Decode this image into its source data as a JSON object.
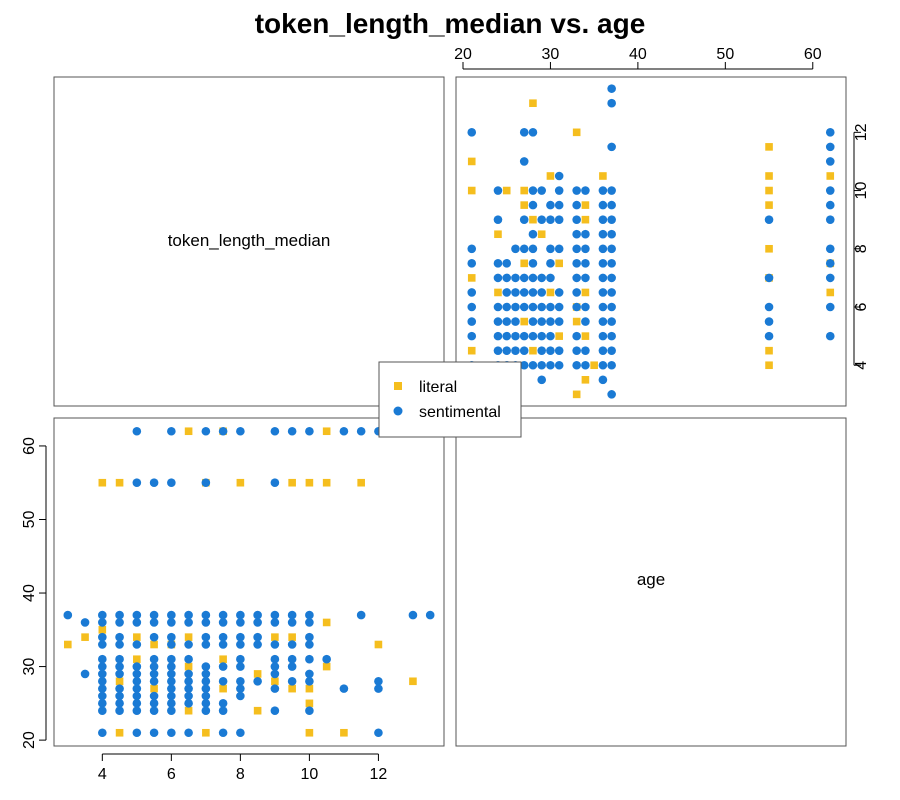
{
  "chart_data": {
    "type": "scatter-matrix",
    "title": "token_length_median vs. age",
    "variables": [
      "token_length_median",
      "age"
    ],
    "diagonal_labels": [
      "token_length_median",
      "age"
    ],
    "axes": {
      "token_length_median": {
        "range": [
          2.6,
          13.9
        ],
        "ticks": [
          4,
          6,
          8,
          10,
          12
        ]
      },
      "age": {
        "range": [
          19.2,
          63.8
        ],
        "ticks": [
          20,
          30,
          40,
          50,
          60
        ]
      }
    },
    "legend": {
      "placement": "center",
      "entries": [
        {
          "label": "literal",
          "marker": "square",
          "color": "#F5BE1E"
        },
        {
          "label": "sentimental",
          "marker": "circle",
          "color": "#1A7AD4"
        }
      ]
    },
    "series": [
      {
        "name": "literal",
        "marker": "square",
        "color": "#F5BE1E",
        "points": [
          [
            3,
            33
          ],
          [
            3.5,
            34
          ],
          [
            4,
            35
          ],
          [
            4.5,
            21
          ],
          [
            4.5,
            28
          ],
          [
            4.5,
            55
          ],
          [
            5,
            34
          ],
          [
            5,
            31
          ],
          [
            5.5,
            27
          ],
          [
            6,
            33
          ],
          [
            6.5,
            62
          ],
          [
            6.5,
            34
          ],
          [
            6.5,
            30
          ],
          [
            6.5,
            24
          ],
          [
            7,
            21
          ],
          [
            7,
            55
          ],
          [
            7.5,
            62
          ],
          [
            7.5,
            31
          ],
          [
            7.5,
            27
          ],
          [
            8,
            55
          ],
          [
            8.5,
            29
          ],
          [
            8.5,
            24
          ],
          [
            9,
            28
          ],
          [
            9,
            34
          ],
          [
            9.5,
            55
          ],
          [
            9.5,
            34
          ],
          [
            9.5,
            27
          ],
          [
            10,
            27
          ],
          [
            10,
            25
          ],
          [
            10,
            55
          ],
          [
            10,
            21
          ],
          [
            10.5,
            62
          ],
          [
            10.5,
            55
          ],
          [
            10.5,
            36
          ],
          [
            10.5,
            30
          ],
          [
            11,
            21
          ],
          [
            11.5,
            55
          ],
          [
            12,
            33
          ],
          [
            13,
            28
          ],
          [
            4,
            55
          ],
          [
            5.5,
            33
          ]
        ]
      },
      {
        "name": "sentimental",
        "marker": "circle",
        "color": "#1A7AD4",
        "points": [
          [
            3,
            37
          ],
          [
            3.5,
            36
          ],
          [
            3.5,
            29
          ],
          [
            13.5,
            37
          ],
          [
            13,
            37
          ],
          [
            11.5,
            37
          ],
          [
            11,
            27
          ],
          [
            12,
            28
          ],
          [
            12,
            27
          ],
          [
            12,
            21
          ],
          [
            12,
            62
          ],
          [
            11.5,
            62
          ],
          [
            11,
            62
          ],
          [
            10,
            62
          ],
          [
            9.5,
            62
          ],
          [
            9,
            62
          ],
          [
            8,
            62
          ],
          [
            7.5,
            62
          ],
          [
            7,
            62
          ],
          [
            6,
            62
          ],
          [
            5,
            62
          ],
          [
            9,
            55
          ],
          [
            7,
            55
          ],
          [
            6,
            55
          ],
          [
            5.5,
            55
          ],
          [
            5,
            55
          ],
          [
            4,
            37
          ],
          [
            4,
            36
          ],
          [
            4,
            34
          ],
          [
            4,
            33
          ],
          [
            4,
            31
          ],
          [
            4,
            30
          ],
          [
            4,
            29
          ],
          [
            4,
            28
          ],
          [
            4,
            27
          ],
          [
            4,
            26
          ],
          [
            4,
            25
          ],
          [
            4,
            24
          ],
          [
            4,
            21
          ],
          [
            4.5,
            37
          ],
          [
            4.5,
            36
          ],
          [
            4.5,
            34
          ],
          [
            4.5,
            33
          ],
          [
            4.5,
            31
          ],
          [
            4.5,
            30
          ],
          [
            4.5,
            29
          ],
          [
            4.5,
            27
          ],
          [
            4.5,
            26
          ],
          [
            4.5,
            25
          ],
          [
            4.5,
            24
          ],
          [
            5,
            37
          ],
          [
            5,
            36
          ],
          [
            5,
            33
          ],
          [
            5,
            30
          ],
          [
            5,
            29
          ],
          [
            5,
            28
          ],
          [
            5,
            27
          ],
          [
            5,
            26
          ],
          [
            5,
            25
          ],
          [
            5,
            24
          ],
          [
            5,
            21
          ],
          [
            5.5,
            37
          ],
          [
            5.5,
            36
          ],
          [
            5.5,
            34
          ],
          [
            5.5,
            31
          ],
          [
            5.5,
            30
          ],
          [
            5.5,
            29
          ],
          [
            5.5,
            28
          ],
          [
            5.5,
            26
          ],
          [
            5.5,
            25
          ],
          [
            5.5,
            24
          ],
          [
            5.5,
            21
          ],
          [
            6,
            37
          ],
          [
            6,
            36
          ],
          [
            6,
            34
          ],
          [
            6,
            33
          ],
          [
            6,
            31
          ],
          [
            6,
            30
          ],
          [
            6,
            29
          ],
          [
            6,
            28
          ],
          [
            6,
            27
          ],
          [
            6,
            26
          ],
          [
            6,
            25
          ],
          [
            6,
            24
          ],
          [
            6,
            21
          ],
          [
            6.5,
            37
          ],
          [
            6.5,
            36
          ],
          [
            6.5,
            33
          ],
          [
            6.5,
            31
          ],
          [
            6.5,
            29
          ],
          [
            6.5,
            28
          ],
          [
            6.5,
            27
          ],
          [
            6.5,
            26
          ],
          [
            6.5,
            25
          ],
          [
            6.5,
            21
          ],
          [
            7,
            37
          ],
          [
            7,
            36
          ],
          [
            7,
            34
          ],
          [
            7,
            33
          ],
          [
            7,
            30
          ],
          [
            7,
            29
          ],
          [
            7,
            28
          ],
          [
            7,
            27
          ],
          [
            7,
            26
          ],
          [
            7,
            25
          ],
          [
            7,
            24
          ],
          [
            7.5,
            37
          ],
          [
            7.5,
            36
          ],
          [
            7.5,
            34
          ],
          [
            7.5,
            33
          ],
          [
            7.5,
            30
          ],
          [
            7.5,
            28
          ],
          [
            7.5,
            25
          ],
          [
            7.5,
            24
          ],
          [
            7.5,
            21
          ],
          [
            8,
            37
          ],
          [
            8,
            36
          ],
          [
            8,
            34
          ],
          [
            8,
            33
          ],
          [
            8,
            31
          ],
          [
            8,
            30
          ],
          [
            8,
            28
          ],
          [
            8,
            27
          ],
          [
            8,
            26
          ],
          [
            8,
            21
          ],
          [
            8.5,
            37
          ],
          [
            8.5,
            36
          ],
          [
            8.5,
            34
          ],
          [
            8.5,
            33
          ],
          [
            8.5,
            28
          ],
          [
            9,
            37
          ],
          [
            9,
            36
          ],
          [
            9,
            33
          ],
          [
            9,
            31
          ],
          [
            9,
            30
          ],
          [
            9,
            29
          ],
          [
            9,
            27
          ],
          [
            9,
            24
          ],
          [
            9.5,
            37
          ],
          [
            9.5,
            36
          ],
          [
            9.5,
            33
          ],
          [
            9.5,
            31
          ],
          [
            9.5,
            30
          ],
          [
            9.5,
            28
          ],
          [
            10,
            37
          ],
          [
            10,
            36
          ],
          [
            10,
            34
          ],
          [
            10,
            33
          ],
          [
            10,
            31
          ],
          [
            10,
            29
          ],
          [
            10,
            28
          ],
          [
            10,
            24
          ],
          [
            10.5,
            31
          ]
        ]
      }
    ]
  }
}
